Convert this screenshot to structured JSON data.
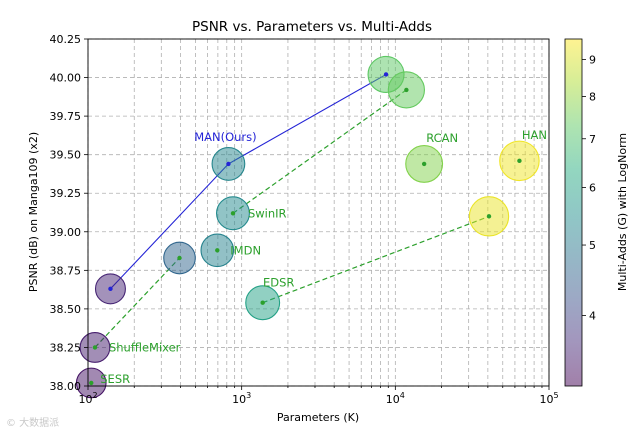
{
  "chart_data": {
    "type": "scatter",
    "title": "PSNR vs. Parameters vs. Multi-Adds",
    "xlabel": "Parameters (K)",
    "ylabel": "PSNR (dB) on Manga109 (x2)",
    "xscale": "log",
    "xlim": [
      100,
      100000
    ],
    "ylim": [
      38.0,
      40.25
    ],
    "x_ticks": [
      {
        "value": 100,
        "base": "10",
        "exp": "2"
      },
      {
        "value": 1000,
        "base": "10",
        "exp": "3"
      },
      {
        "value": 10000,
        "base": "10",
        "exp": "4"
      },
      {
        "value": 100000,
        "base": "10",
        "exp": "5"
      }
    ],
    "y_ticks": [
      "38.00",
      "38.25",
      "38.50",
      "38.75",
      "39.00",
      "39.25",
      "39.50",
      "39.75",
      "40.00",
      "40.25"
    ],
    "grid": true,
    "colorbar": {
      "label": "Multi-Adds (G) with LogNorm",
      "range": [
        3.2,
        9.6
      ],
      "ticks": [
        "4",
        "5",
        "6",
        "7",
        "8",
        "9"
      ]
    },
    "points": [
      {
        "name": "SESR",
        "params_k": 105,
        "psnr": 38.02,
        "mult_adds": 3.4
      },
      {
        "name": "ShuffleMixer",
        "params_k": 111,
        "psnr": 38.25,
        "mult_adds": 3.5
      },
      {
        "name": "",
        "params_k": 140,
        "psnr": 38.63,
        "mult_adds": 3.6
      },
      {
        "name": "",
        "params_k": 394,
        "psnr": 38.83,
        "mult_adds": 4.6
      },
      {
        "name": "IMDN",
        "params_k": 694,
        "psnr": 38.88,
        "mult_adds": 5.2
      },
      {
        "name": "MAN(Ours)",
        "params_k": 820,
        "psnr": 39.44,
        "mult_adds": 5.3
      },
      {
        "name": "SwinIR",
        "params_k": 878,
        "psnr": 39.12,
        "mult_adds": 5.4
      },
      {
        "name": "EDSR",
        "params_k": 1370,
        "psnr": 38.54,
        "mult_adds": 6.0
      },
      {
        "name": "",
        "params_k": 8700,
        "psnr": 40.02,
        "mult_adds": 7.3
      },
      {
        "name": "",
        "params_k": 11800,
        "psnr": 39.92,
        "mult_adds": 7.4
      },
      {
        "name": "RCAN",
        "params_k": 15400,
        "psnr": 39.44,
        "mult_adds": 7.8
      },
      {
        "name": "",
        "params_k": 40700,
        "psnr": 39.1,
        "mult_adds": 9.3
      },
      {
        "name": "HAN",
        "params_k": 64200,
        "psnr": 39.46,
        "mult_adds": 9.4
      }
    ],
    "series": [
      {
        "name": "MAN",
        "style": "solid",
        "color": "#2424d6",
        "points": [
          [
            140,
            38.63
          ],
          [
            820,
            39.44
          ],
          [
            8700,
            40.02
          ]
        ]
      },
      {
        "name": "SwinIR",
        "style": "dashed",
        "color": "#2ca02c",
        "points": [
          [
            878,
            39.12
          ],
          [
            11800,
            39.92
          ]
        ]
      },
      {
        "name": "ShuffleMixer",
        "style": "dashed",
        "color": "#2ca02c",
        "points": [
          [
            111,
            38.25
          ],
          [
            394,
            38.83
          ]
        ]
      },
      {
        "name": "EDSR",
        "style": "dashed",
        "color": "#2ca02c",
        "points": [
          [
            1370,
            38.54
          ],
          [
            40700,
            39.1
          ]
        ]
      }
    ]
  },
  "watermark": "© 大数据派"
}
